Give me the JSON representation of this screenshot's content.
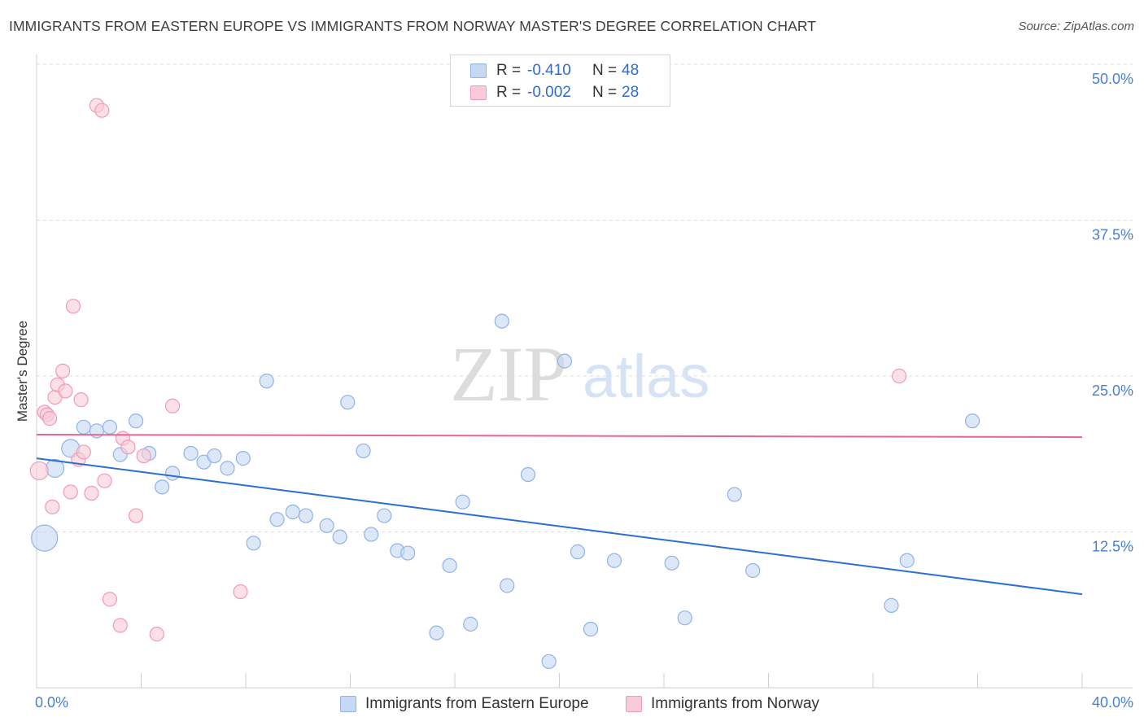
{
  "header": {
    "title": "IMMIGRANTS FROM EASTERN EUROPE VS IMMIGRANTS FROM NORWAY MASTER'S DEGREE CORRELATION CHART",
    "source": "Source: ZipAtlas.com"
  },
  "legend": {
    "r_label": "R =",
    "n_label": "N =",
    "series": [
      {
        "r": "-0.410",
        "n": "48"
      },
      {
        "r": "-0.002",
        "n": "28"
      }
    ]
  },
  "watermark": {
    "zip": "ZIP",
    "atlas": "atlas"
  },
  "colors": {
    "blue_fill": "#c5d9f4",
    "blue_stroke": "#8fb3e6",
    "blue_line": "#2b6fd1",
    "pink_fill": "#f9cbd9",
    "pink_stroke": "#ef9bb6",
    "pink_line": "#e8658f",
    "tick_text": "#4a7fcf"
  },
  "chart_data": {
    "type": "scatter",
    "title": "IMMIGRANTS FROM EASTERN EUROPE VS IMMIGRANTS FROM NORWAY MASTER'S DEGREE CORRELATION CHART",
    "ylabel": "Master's Degree",
    "xlabel": "",
    "xlim": [
      0,
      40
    ],
    "ylim": [
      0,
      50
    ],
    "x_tick_labels": [
      "0.0%",
      "40.0%"
    ],
    "y_ticks": [
      12.5,
      25.0,
      37.5,
      50.0
    ],
    "y_tick_labels": [
      "12.5%",
      "25.0%",
      "37.5%",
      "50.0%"
    ],
    "grid": "horizontal dashed",
    "legend_position": "top-center",
    "series": [
      {
        "name": "Immigrants from Eastern Europe",
        "color": "#8fb3e6",
        "r": -0.41,
        "n": 48,
        "trend": [
          [
            0,
            18.4
          ],
          [
            40,
            7.5
          ]
        ],
        "points": [
          [
            0.3,
            12.0,
            3
          ],
          [
            0.7,
            17.6,
            2
          ],
          [
            1.3,
            19.2,
            2
          ],
          [
            1.8,
            20.9,
            1
          ],
          [
            2.3,
            20.6,
            1
          ],
          [
            2.8,
            20.9,
            1
          ],
          [
            3.2,
            18.7,
            1
          ],
          [
            3.8,
            21.4,
            1
          ],
          [
            4.3,
            18.8,
            1
          ],
          [
            4.8,
            16.1,
            1
          ],
          [
            5.2,
            17.2,
            1
          ],
          [
            5.9,
            18.8,
            1
          ],
          [
            6.4,
            18.1,
            1
          ],
          [
            6.8,
            18.6,
            1
          ],
          [
            7.3,
            17.6,
            1
          ],
          [
            7.9,
            18.4,
            1
          ],
          [
            8.3,
            11.6,
            1
          ],
          [
            8.8,
            24.6,
            1
          ],
          [
            9.2,
            13.5,
            1
          ],
          [
            9.8,
            14.1,
            1
          ],
          [
            10.3,
            13.8,
            1
          ],
          [
            11.1,
            13.0,
            1
          ],
          [
            11.6,
            12.1,
            1
          ],
          [
            11.9,
            22.9,
            1
          ],
          [
            12.5,
            19.0,
            1
          ],
          [
            12.8,
            12.3,
            1
          ],
          [
            13.3,
            13.8,
            1
          ],
          [
            13.8,
            11.0,
            1
          ],
          [
            14.2,
            10.8,
            1
          ],
          [
            15.8,
            9.8,
            1
          ],
          [
            15.3,
            4.4,
            1
          ],
          [
            16.3,
            14.9,
            1
          ],
          [
            16.6,
            5.1,
            1
          ],
          [
            17.8,
            29.4,
            1
          ],
          [
            18.0,
            8.2,
            1
          ],
          [
            18.8,
            17.1,
            1
          ],
          [
            19.6,
            2.1,
            1
          ],
          [
            20.2,
            26.2,
            1
          ],
          [
            20.7,
            10.9,
            1
          ],
          [
            21.2,
            4.7,
            1
          ],
          [
            22.1,
            10.2,
            1
          ],
          [
            24.3,
            10.0,
            1
          ],
          [
            24.8,
            5.6,
            1
          ],
          [
            26.7,
            15.5,
            1
          ],
          [
            27.4,
            9.4,
            1
          ],
          [
            32.7,
            6.6,
            1
          ],
          [
            33.3,
            10.2,
            1
          ],
          [
            35.8,
            21.4,
            1
          ]
        ]
      },
      {
        "name": "Immigrants from Norway",
        "color": "#ef9bb6",
        "r": -0.002,
        "n": 28,
        "trend": [
          [
            0,
            20.3
          ],
          [
            40,
            20.1
          ]
        ],
        "points": [
          [
            0.1,
            17.4,
            2
          ],
          [
            0.3,
            22.1,
            1
          ],
          [
            0.4,
            21.9,
            1
          ],
          [
            0.5,
            21.6,
            1
          ],
          [
            0.6,
            14.5,
            1
          ],
          [
            0.7,
            23.3,
            1
          ],
          [
            0.8,
            24.3,
            1
          ],
          [
            1.0,
            25.4,
            1
          ],
          [
            1.1,
            23.8,
            1
          ],
          [
            1.3,
            15.7,
            1
          ],
          [
            1.4,
            30.6,
            1
          ],
          [
            1.6,
            18.3,
            1
          ],
          [
            1.7,
            23.1,
            1
          ],
          [
            1.8,
            18.9,
            1
          ],
          [
            2.1,
            15.6,
            1
          ],
          [
            2.3,
            46.7,
            1
          ],
          [
            2.5,
            46.3,
            1
          ],
          [
            2.6,
            16.6,
            1
          ],
          [
            2.8,
            7.1,
            1
          ],
          [
            3.2,
            5.0,
            1
          ],
          [
            3.3,
            20.0,
            1
          ],
          [
            3.5,
            19.3,
            1
          ],
          [
            3.8,
            13.8,
            1
          ],
          [
            4.1,
            18.6,
            1
          ],
          [
            4.6,
            4.3,
            1
          ],
          [
            5.2,
            22.6,
            1
          ],
          [
            7.8,
            7.7,
            1
          ],
          [
            33.0,
            25.0,
            1
          ]
        ]
      }
    ]
  },
  "bottom_legend": {
    "items": [
      "Immigrants from Eastern Europe",
      "Immigrants from Norway"
    ]
  }
}
